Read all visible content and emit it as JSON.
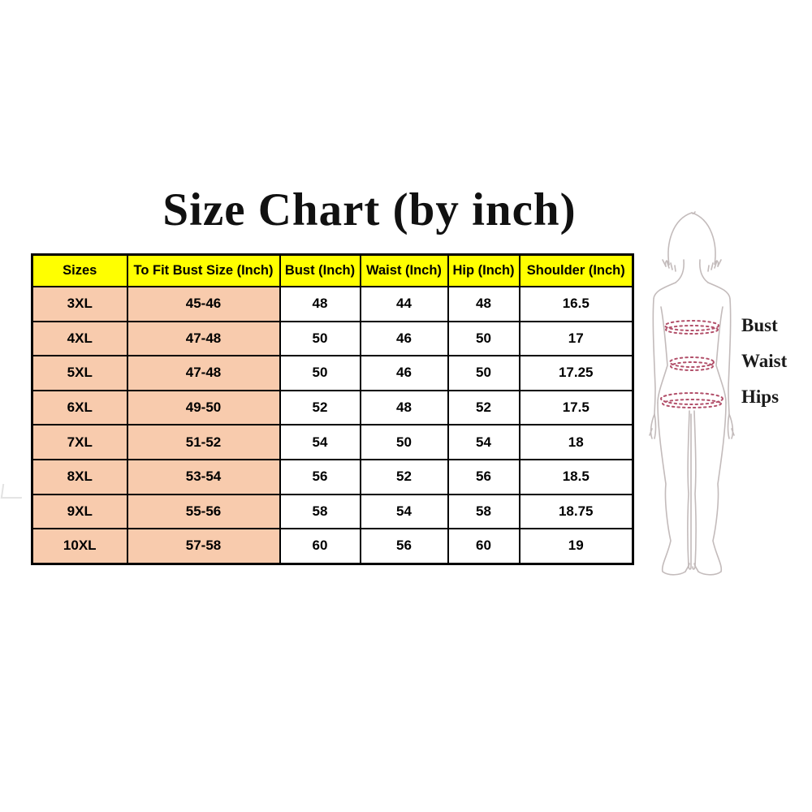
{
  "title": "Size Chart (by inch)",
  "chart_data": {
    "type": "table",
    "title": "Size Chart (by inch)",
    "columns": [
      "Sizes",
      "To Fit Bust Size (Inch)",
      "Bust (Inch)",
      "Waist (Inch)",
      "Hip (Inch)",
      "Shoulder (Inch)"
    ],
    "rows": [
      [
        "3XL",
        "45-46",
        "48",
        "44",
        "48",
        "16.5"
      ],
      [
        "4XL",
        "47-48",
        "50",
        "46",
        "50",
        "17"
      ],
      [
        "5XL",
        "47-48",
        "50",
        "46",
        "50",
        "17.25"
      ],
      [
        "6XL",
        "49-50",
        "52",
        "48",
        "52",
        "17.5"
      ],
      [
        "7XL",
        "51-52",
        "54",
        "50",
        "54",
        "18"
      ],
      [
        "8XL",
        "53-54",
        "56",
        "52",
        "56",
        "18.5"
      ],
      [
        "9XL",
        "55-56",
        "58",
        "54",
        "58",
        "18.75"
      ],
      [
        "10XL",
        "57-58",
        "60",
        "56",
        "60",
        "19"
      ]
    ]
  },
  "figure": {
    "labels": {
      "bust": "Bust",
      "waist": "Waist",
      "hips": "Hips"
    }
  },
  "colors": {
    "header_bg": "#FFFF00",
    "size_col_bg": "#F8CBAD",
    "border": "#000000",
    "body_outline": "#C3BBBB",
    "measure_line": "#B2506A"
  }
}
